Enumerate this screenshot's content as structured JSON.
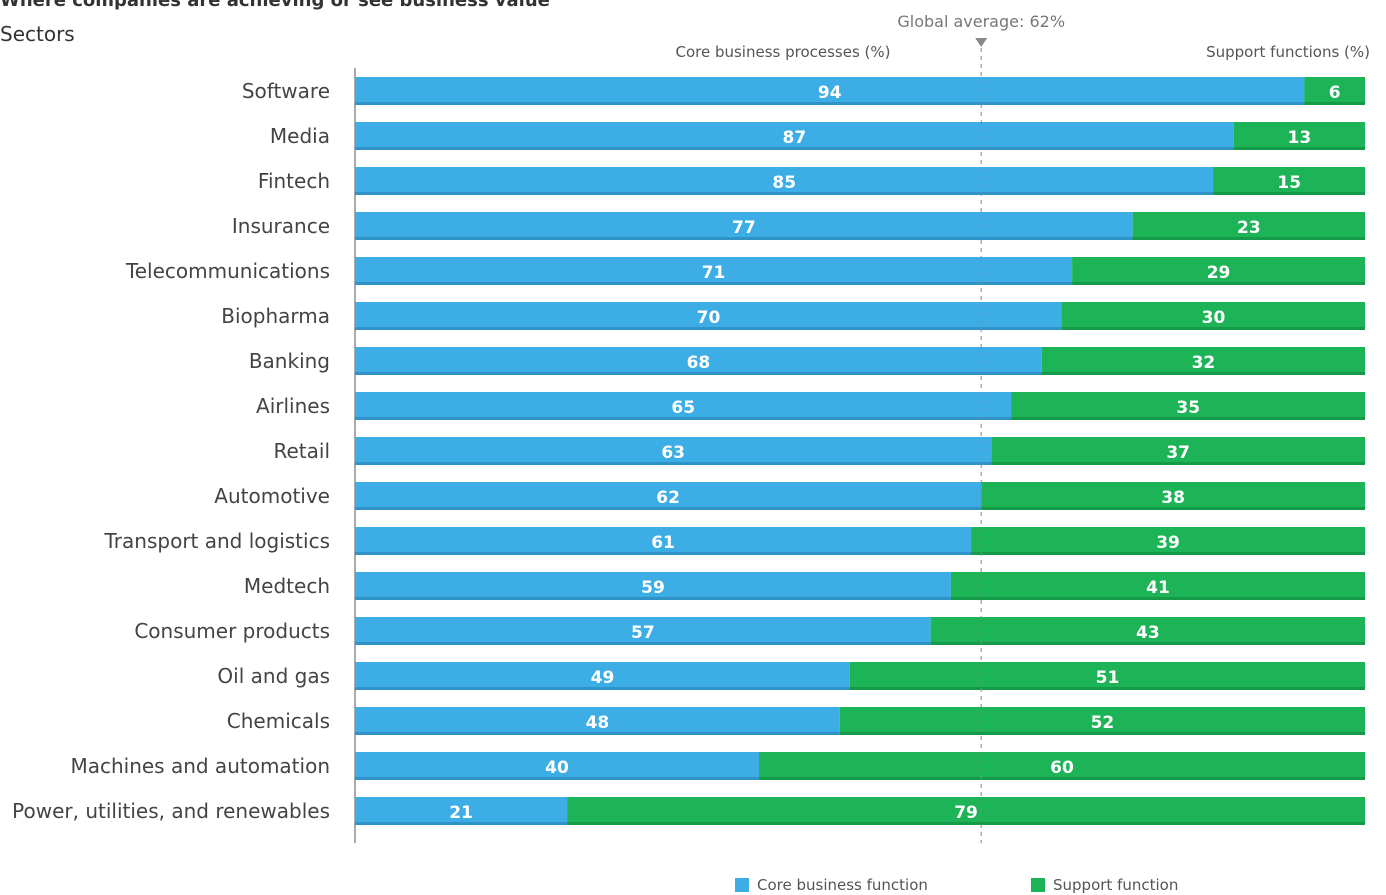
{
  "title": "Where companies are achieving or see business value",
  "subtitle": "Sectors",
  "colors": {
    "core": "#3daee5",
    "support": "#1db357"
  },
  "chart_data": {
    "type": "bar",
    "orientation": "horizontal",
    "stacked": true,
    "xlim": [
      0,
      100
    ],
    "categories": [
      "Software",
      "Media",
      "Fintech",
      "Insurance",
      "Telecommunications",
      "Biopharma",
      "Banking",
      "Airlines",
      "Retail",
      "Automotive",
      "Transport and logistics",
      "Medtech",
      "Consumer products",
      "Oil and gas",
      "Chemicals",
      "Machines and automation",
      "Power, utilities, and renewables"
    ],
    "series": [
      {
        "name": "Core business function",
        "values": [
          94,
          87,
          85,
          77,
          71,
          70,
          68,
          65,
          63,
          62,
          61,
          59,
          57,
          49,
          48,
          40,
          21
        ]
      },
      {
        "name": "Support function",
        "values": [
          6,
          13,
          15,
          23,
          29,
          30,
          32,
          35,
          37,
          38,
          39,
          41,
          43,
          51,
          52,
          60,
          79
        ]
      }
    ],
    "column_headers": {
      "left": "Core business processes (%)",
      "right": "Support functions (%)"
    },
    "reference_line": {
      "value": 62,
      "label": "Global average: 62%"
    },
    "legend": {
      "position": "bottom-right",
      "items": [
        "Core business function",
        "Support function"
      ]
    }
  }
}
